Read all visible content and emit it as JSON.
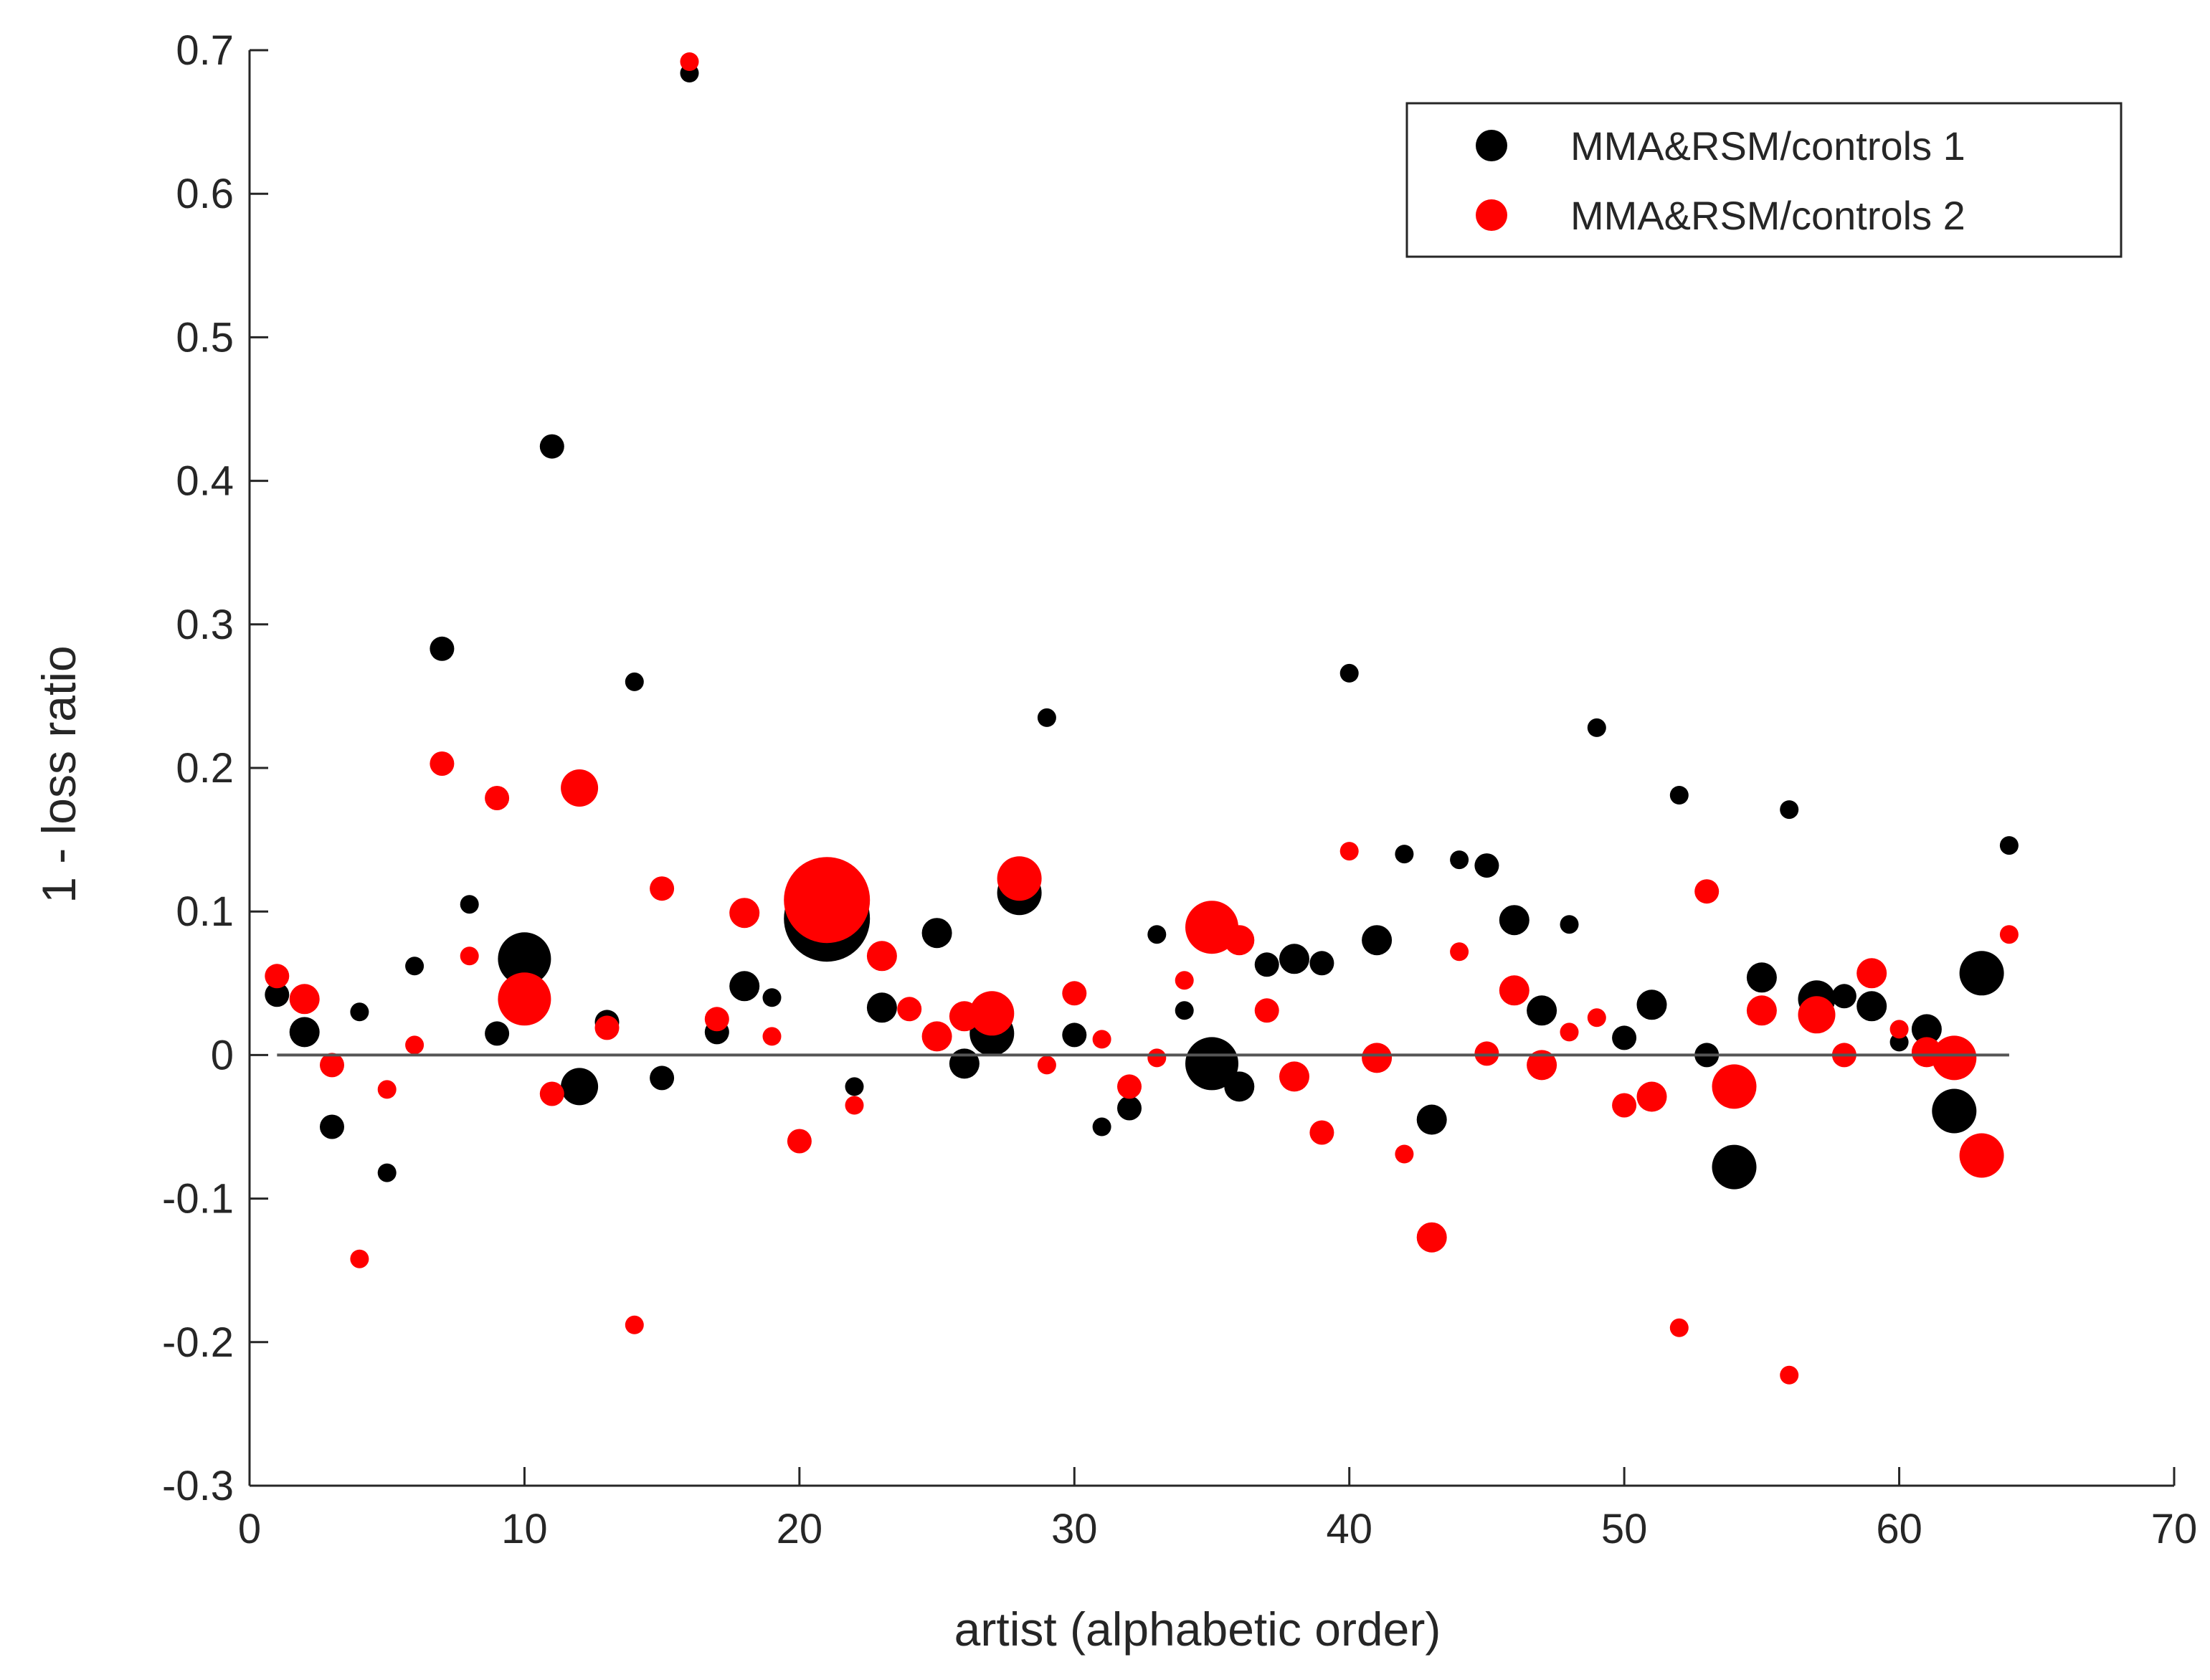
{
  "chart_data": {
    "type": "scatter",
    "title": "",
    "xlabel": "artist (alphabetic order)",
    "ylabel": "1 - loss ratio",
    "xlim": [
      0,
      70
    ],
    "ylim": [
      -0.3,
      0.7
    ],
    "xticks": [
      0,
      10,
      20,
      30,
      40,
      50,
      60,
      70
    ],
    "yticks": [
      -0.3,
      -0.2,
      -0.1,
      0,
      0.1,
      0.2,
      0.3,
      0.4,
      0.5,
      0.6,
      0.7
    ],
    "xtick_labels": [
      "0",
      "10",
      "20",
      "30",
      "40",
      "50",
      "60",
      "70"
    ],
    "ytick_labels": [
      "-0.3",
      "-0.2",
      "-0.1",
      "0",
      "0.1",
      "0.2",
      "0.3",
      "0.4",
      "0.5",
      "0.6",
      "0.7"
    ],
    "grid": false,
    "legend_position": "top-right",
    "marker_size_note": "marker area varies per point",
    "reference_line": {
      "y": 0,
      "x_from": 1,
      "x_to": 64,
      "color": "#555555"
    },
    "series": [
      {
        "name": "MMA&RSM/controls 1",
        "color": "#000000",
        "points": [
          {
            "x": 1,
            "y": 0.042,
            "s": 2
          },
          {
            "x": 2,
            "y": 0.016,
            "s": 3
          },
          {
            "x": 3,
            "y": -0.05,
            "s": 2
          },
          {
            "x": 4,
            "y": 0.03,
            "s": 1
          },
          {
            "x": 5,
            "y": -0.082,
            "s": 1
          },
          {
            "x": 6,
            "y": 0.062,
            "s": 1
          },
          {
            "x": 7,
            "y": 0.283,
            "s": 2
          },
          {
            "x": 8,
            "y": 0.105,
            "s": 1
          },
          {
            "x": 9,
            "y": 0.015,
            "s": 2
          },
          {
            "x": 10,
            "y": 0.067,
            "s": 6
          },
          {
            "x": 11,
            "y": 0.424,
            "s": 2
          },
          {
            "x": 12,
            "y": -0.022,
            "s": 4
          },
          {
            "x": 13,
            "y": 0.023,
            "s": 2
          },
          {
            "x": 14,
            "y": 0.26,
            "s": 1
          },
          {
            "x": 15,
            "y": -0.016,
            "s": 2
          },
          {
            "x": 16,
            "y": 0.684,
            "s": 1
          },
          {
            "x": 17,
            "y": 0.016,
            "s": 2
          },
          {
            "x": 18,
            "y": 0.048,
            "s": 3
          },
          {
            "x": 19,
            "y": 0.04,
            "s": 1
          },
          {
            "x": 20,
            "y": 0.117,
            "s": 2
          },
          {
            "x": 21,
            "y": 0.095,
            "s": 8
          },
          {
            "x": 22,
            "y": -0.022,
            "s": 1
          },
          {
            "x": 23,
            "y": 0.033,
            "s": 3
          },
          {
            "x": 25,
            "y": 0.085,
            "s": 3
          },
          {
            "x": 26,
            "y": -0.006,
            "s": 3
          },
          {
            "x": 27,
            "y": 0.015,
            "s": 5
          },
          {
            "x": 28,
            "y": 0.113,
            "s": 5
          },
          {
            "x": 29,
            "y": 0.235,
            "s": 1
          },
          {
            "x": 30,
            "y": 0.014,
            "s": 2
          },
          {
            "x": 31,
            "y": -0.05,
            "s": 1
          },
          {
            "x": 32,
            "y": -0.037,
            "s": 2
          },
          {
            "x": 33,
            "y": 0.084,
            "s": 1
          },
          {
            "x": 34,
            "y": 0.031,
            "s": 1
          },
          {
            "x": 35,
            "y": -0.006,
            "s": 6
          },
          {
            "x": 36,
            "y": -0.022,
            "s": 3
          },
          {
            "x": 37,
            "y": 0.063,
            "s": 2
          },
          {
            "x": 38,
            "y": 0.067,
            "s": 3
          },
          {
            "x": 39,
            "y": 0.064,
            "s": 2
          },
          {
            "x": 40,
            "y": 0.266,
            "s": 1
          },
          {
            "x": 41,
            "y": 0.08,
            "s": 3
          },
          {
            "x": 42,
            "y": 0.14,
            "s": 1
          },
          {
            "x": 43,
            "y": -0.045,
            "s": 3
          },
          {
            "x": 44,
            "y": 0.136,
            "s": 1
          },
          {
            "x": 45,
            "y": 0.132,
            "s": 2
          },
          {
            "x": 46,
            "y": 0.094,
            "s": 3
          },
          {
            "x": 47,
            "y": 0.031,
            "s": 3
          },
          {
            "x": 48,
            "y": 0.091,
            "s": 1
          },
          {
            "x": 49,
            "y": 0.228,
            "s": 1
          },
          {
            "x": 50,
            "y": 0.012,
            "s": 2
          },
          {
            "x": 51,
            "y": 0.035,
            "s": 3
          },
          {
            "x": 52,
            "y": 0.181,
            "s": 1
          },
          {
            "x": 53,
            "y": 0.0,
            "s": 2
          },
          {
            "x": 54,
            "y": -0.078,
            "s": 5
          },
          {
            "x": 55,
            "y": 0.054,
            "s": 3
          },
          {
            "x": 56,
            "y": 0.171,
            "s": 1
          },
          {
            "x": 57,
            "y": 0.039,
            "s": 4
          },
          {
            "x": 58,
            "y": 0.041,
            "s": 2
          },
          {
            "x": 59,
            "y": 0.034,
            "s": 3
          },
          {
            "x": 60,
            "y": 0.009,
            "s": 1
          },
          {
            "x": 61,
            "y": 0.018,
            "s": 3
          },
          {
            "x": 62,
            "y": -0.039,
            "s": 5
          },
          {
            "x": 63,
            "y": 0.057,
            "s": 5
          },
          {
            "x": 64,
            "y": 0.146,
            "s": 1
          }
        ]
      },
      {
        "name": "MMA&RSM/controls 2",
        "color": "#ff0000",
        "points": [
          {
            "x": 1,
            "y": 0.055,
            "s": 2
          },
          {
            "x": 2,
            "y": 0.039,
            "s": 3
          },
          {
            "x": 3,
            "y": -0.007,
            "s": 2
          },
          {
            "x": 4,
            "y": -0.142,
            "s": 1
          },
          {
            "x": 5,
            "y": -0.024,
            "s": 1
          },
          {
            "x": 6,
            "y": 0.007,
            "s": 1
          },
          {
            "x": 7,
            "y": 0.203,
            "s": 2
          },
          {
            "x": 8,
            "y": 0.069,
            "s": 1
          },
          {
            "x": 9,
            "y": 0.179,
            "s": 2
          },
          {
            "x": 10,
            "y": 0.039,
            "s": 6
          },
          {
            "x": 11,
            "y": -0.027,
            "s": 2
          },
          {
            "x": 12,
            "y": 0.186,
            "s": 4
          },
          {
            "x": 13,
            "y": 0.019,
            "s": 2
          },
          {
            "x": 14,
            "y": -0.188,
            "s": 1
          },
          {
            "x": 15,
            "y": 0.116,
            "s": 2
          },
          {
            "x": 16,
            "y": 0.692,
            "s": 1
          },
          {
            "x": 17,
            "y": 0.025,
            "s": 2
          },
          {
            "x": 18,
            "y": 0.099,
            "s": 3
          },
          {
            "x": 19,
            "y": 0.013,
            "s": 1
          },
          {
            "x": 20,
            "y": -0.06,
            "s": 2
          },
          {
            "x": 21,
            "y": 0.108,
            "s": 8
          },
          {
            "x": 22,
            "y": -0.035,
            "s": 1
          },
          {
            "x": 23,
            "y": 0.069,
            "s": 3
          },
          {
            "x": 24,
            "y": 0.032,
            "s": 2
          },
          {
            "x": 25,
            "y": 0.013,
            "s": 3
          },
          {
            "x": 26,
            "y": 0.027,
            "s": 3
          },
          {
            "x": 27,
            "y": 0.029,
            "s": 5
          },
          {
            "x": 28,
            "y": 0.123,
            "s": 5
          },
          {
            "x": 29,
            "y": -0.007,
            "s": 1
          },
          {
            "x": 30,
            "y": 0.043,
            "s": 2
          },
          {
            "x": 31,
            "y": 0.011,
            "s": 1
          },
          {
            "x": 32,
            "y": -0.022,
            "s": 2
          },
          {
            "x": 33,
            "y": -0.002,
            "s": 1
          },
          {
            "x": 34,
            "y": 0.052,
            "s": 1
          },
          {
            "x": 35,
            "y": 0.089,
            "s": 6
          },
          {
            "x": 36,
            "y": 0.08,
            "s": 3
          },
          {
            "x": 37,
            "y": 0.031,
            "s": 2
          },
          {
            "x": 38,
            "y": -0.015,
            "s": 3
          },
          {
            "x": 39,
            "y": -0.054,
            "s": 2
          },
          {
            "x": 40,
            "y": 0.142,
            "s": 1
          },
          {
            "x": 41,
            "y": -0.002,
            "s": 3
          },
          {
            "x": 42,
            "y": -0.069,
            "s": 1
          },
          {
            "x": 43,
            "y": -0.127,
            "s": 3
          },
          {
            "x": 44,
            "y": 0.072,
            "s": 1
          },
          {
            "x": 45,
            "y": 0.001,
            "s": 2
          },
          {
            "x": 46,
            "y": 0.045,
            "s": 3
          },
          {
            "x": 47,
            "y": -0.007,
            "s": 3
          },
          {
            "x": 48,
            "y": 0.016,
            "s": 1
          },
          {
            "x": 49,
            "y": 0.026,
            "s": 1
          },
          {
            "x": 50,
            "y": -0.035,
            "s": 2
          },
          {
            "x": 51,
            "y": -0.029,
            "s": 3
          },
          {
            "x": 52,
            "y": -0.19,
            "s": 1
          },
          {
            "x": 53,
            "y": 0.114,
            "s": 2
          },
          {
            "x": 54,
            "y": -0.022,
            "s": 5
          },
          {
            "x": 55,
            "y": 0.031,
            "s": 3
          },
          {
            "x": 56,
            "y": -0.223,
            "s": 1
          },
          {
            "x": 57,
            "y": 0.028,
            "s": 4
          },
          {
            "x": 58,
            "y": 0.0,
            "s": 2
          },
          {
            "x": 59,
            "y": 0.057,
            "s": 3
          },
          {
            "x": 60,
            "y": 0.018,
            "s": 1
          },
          {
            "x": 61,
            "y": 0.002,
            "s": 3
          },
          {
            "x": 62,
            "y": -0.002,
            "s": 5
          },
          {
            "x": 63,
            "y": -0.07,
            "s": 5
          },
          {
            "x": 64,
            "y": 0.084,
            "s": 1
          }
        ]
      }
    ]
  }
}
